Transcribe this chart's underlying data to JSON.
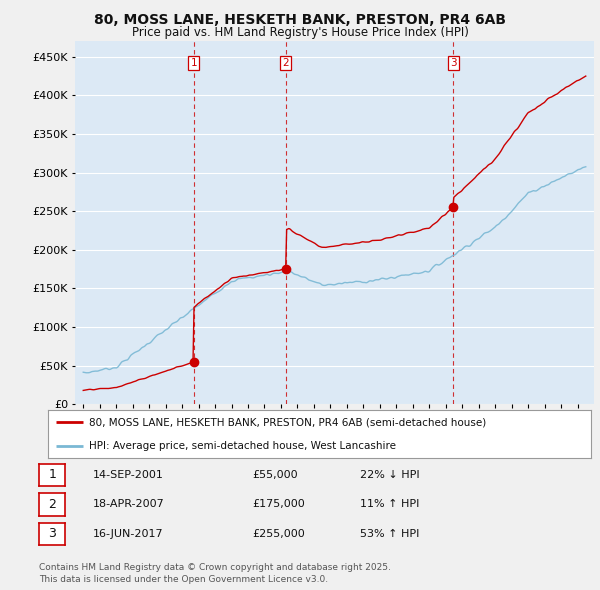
{
  "title": "80, MOSS LANE, HESKETH BANK, PRESTON, PR4 6AB",
  "subtitle": "Price paid vs. HM Land Registry's House Price Index (HPI)",
  "sale_times": [
    2001.708,
    2007.292,
    2017.458
  ],
  "sale_prices": [
    55000,
    175000,
    255000
  ],
  "sale_labels": [
    "1",
    "2",
    "3"
  ],
  "table_rows": [
    [
      "1",
      "14-SEP-2001",
      "£55,000",
      "22% ↓ HPI"
    ],
    [
      "2",
      "18-APR-2007",
      "£175,000",
      "11% ↑ HPI"
    ],
    [
      "3",
      "16-JUN-2017",
      "£255,000",
      "53% ↑ HPI"
    ]
  ],
  "legend_line1": "80, MOSS LANE, HESKETH BANK, PRESTON, PR4 6AB (semi-detached house)",
  "legend_line2": "HPI: Average price, semi-detached house, West Lancashire",
  "footer": "Contains HM Land Registry data © Crown copyright and database right 2025.\nThis data is licensed under the Open Government Licence v3.0.",
  "price_color": "#cc0000",
  "hpi_color": "#7ab8d4",
  "vline_color": "#cc0000",
  "ylim": [
    0,
    470000
  ],
  "yticks": [
    0,
    50000,
    100000,
    150000,
    200000,
    250000,
    300000,
    350000,
    400000,
    450000
  ],
  "ytick_labels": [
    "£0",
    "£50K",
    "£100K",
    "£150K",
    "£200K",
    "£250K",
    "£300K",
    "£350K",
    "£400K",
    "£450K"
  ],
  "bg_color": "#f0f0f0",
  "plot_bg_color": "#dce9f5",
  "grid_color": "#ffffff",
  "xlim_start": 1994.5,
  "xlim_end": 2026.0
}
